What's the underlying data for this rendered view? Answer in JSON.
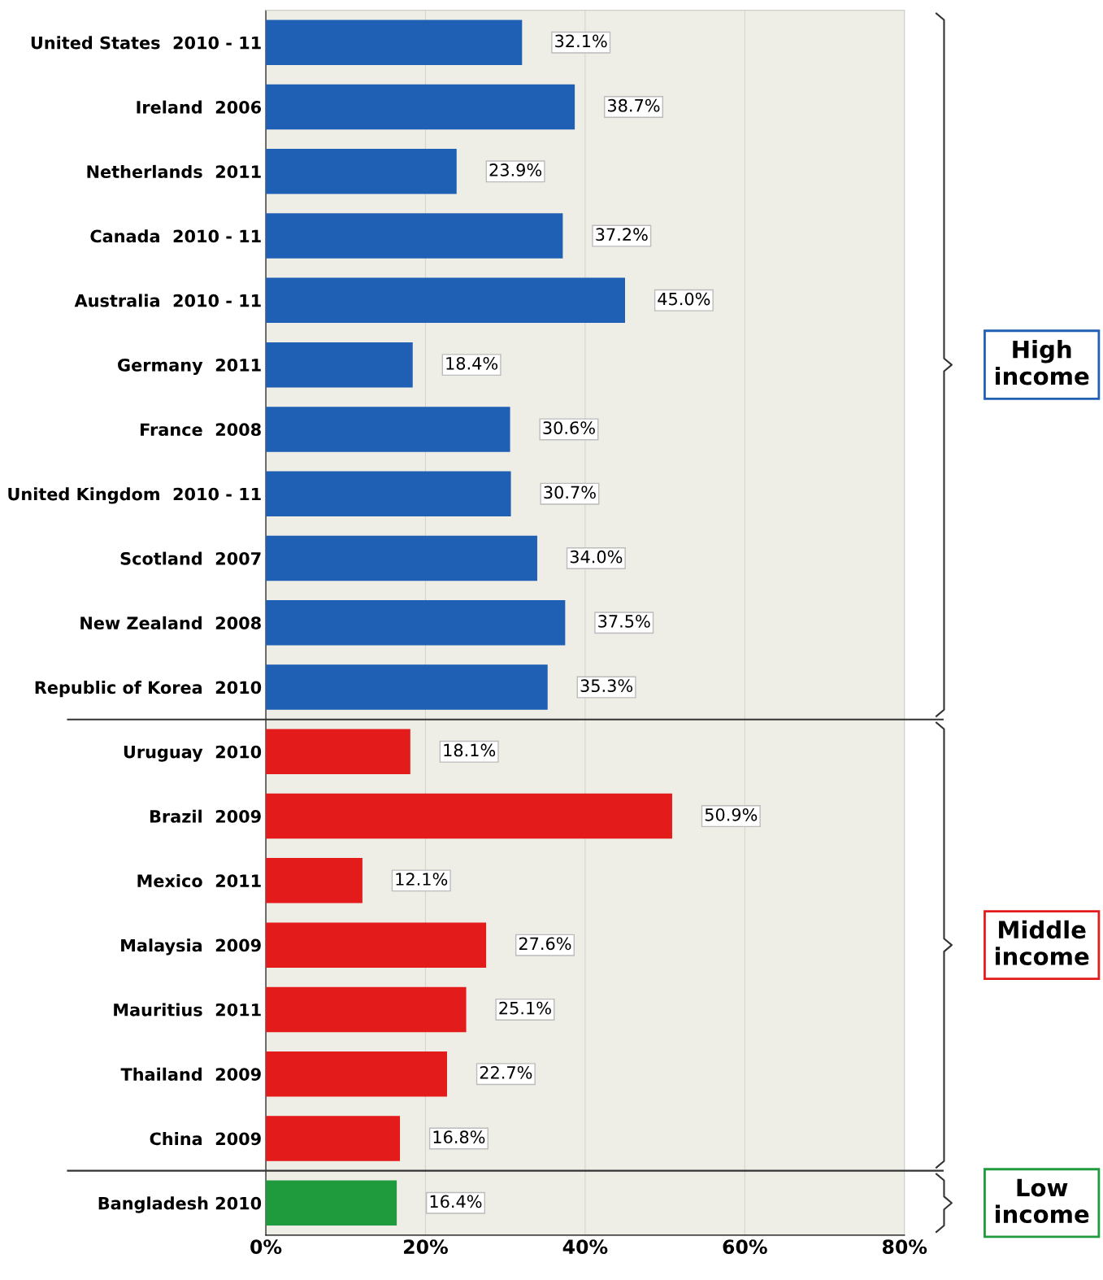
{
  "chart_data": {
    "type": "bar",
    "orientation": "horizontal",
    "categories": [
      "United States  2010 - 11",
      "Ireland  2006",
      "Netherlands  2011",
      "Canada  2010 - 11",
      "Australia  2010 - 11",
      "Germany  2011",
      "France  2008",
      "United Kingdom  2010 - 11",
      "Scotland  2007",
      "New Zealand  2008",
      "Republic of Korea  2010",
      "Uruguay  2010",
      "Brazil  2009",
      "Mexico  2011",
      "Malaysia  2009",
      "Mauritius  2011",
      "Thailand  2009",
      "China  2009",
      "Bangladesh 2010"
    ],
    "values": [
      32.1,
      38.7,
      23.9,
      37.2,
      45.0,
      18.4,
      30.6,
      30.7,
      34.0,
      37.5,
      35.3,
      18.1,
      50.9,
      12.1,
      27.6,
      25.1,
      22.7,
      16.8,
      16.4
    ],
    "value_labels": [
      "32.1%",
      "38.7%",
      "23.9%",
      "37.2%",
      "45.0%",
      "18.4%",
      "30.6%",
      "30.7%",
      "34.0%",
      "37.5%",
      "35.3%",
      "18.1%",
      "50.9%",
      "12.1%",
      "27.6%",
      "25.1%",
      "22.7%",
      "16.8%",
      "16.4%"
    ],
    "colors": [
      "#1f5fb4",
      "#1f5fb4",
      "#1f5fb4",
      "#1f5fb4",
      "#1f5fb4",
      "#1f5fb4",
      "#1f5fb4",
      "#1f5fb4",
      "#1f5fb4",
      "#1f5fb4",
      "#1f5fb4",
      "#e31b1b",
      "#e31b1b",
      "#e31b1b",
      "#e31b1b",
      "#e31b1b",
      "#e31b1b",
      "#e31b1b",
      "#1f9a3c"
    ],
    "xlim": [
      0,
      80
    ],
    "xticks": [
      {
        "value": 0,
        "label": "0%"
      },
      {
        "value": 20,
        "label": "20%"
      },
      {
        "value": 40,
        "label": "40%"
      },
      {
        "value": 60,
        "label": "60%"
      },
      {
        "value": 80,
        "label": "80%"
      }
    ],
    "grid": "x",
    "annotations": [
      "High\nincome",
      "Middle\nincome",
      "Low\nincome"
    ]
  }
}
